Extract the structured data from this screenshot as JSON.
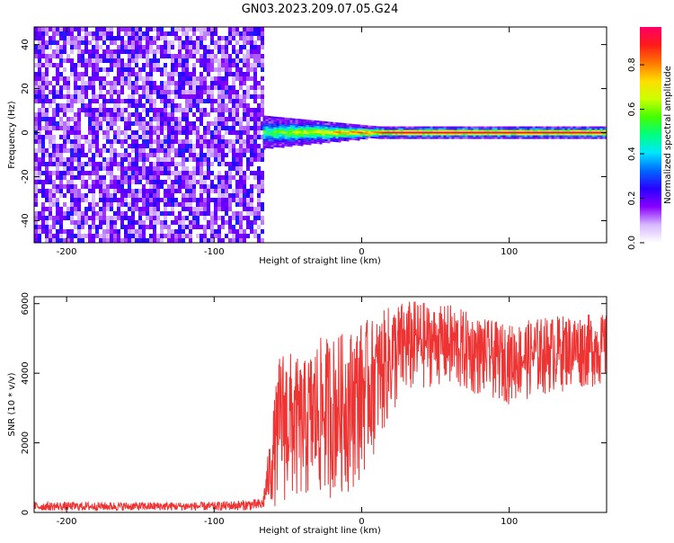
{
  "title": "GN03.2023.209.07.05.G24",
  "chart_data": [
    {
      "type": "heatmap",
      "xlabel": "Height of straight line (km)",
      "ylabel": "Frequency (Hz)",
      "xlim": [
        -222,
        166
      ],
      "ylim": [
        -50,
        48
      ],
      "x_ticks": [
        -200,
        -100,
        0,
        100
      ],
      "x_tick_labels": [
        "-200",
        "-100",
        "0",
        "100"
      ],
      "y_ticks": [
        -40,
        -20,
        0,
        20,
        40
      ],
      "y_tick_labels": [
        "-40",
        "-20",
        "0",
        "20",
        "40"
      ],
      "noise_region_x": [
        -222,
        -67
      ],
      "signal_start_x": -67,
      "signal_frequency": 0,
      "colorbar": {
        "label": "Normalized spectral amplitude",
        "range": [
          0,
          0.97
        ],
        "ticks": [
          0,
          0.2,
          0.4,
          0.6,
          0.8
        ],
        "tick_labels": [
          "0.0",
          "0.2",
          "0.4",
          "0.6",
          "0.8"
        ],
        "colors": [
          "#ffffff",
          "#d6b8ff",
          "#8800ff",
          "#2a00ff",
          "#0066ff",
          "#00e5ff",
          "#00ff80",
          "#44ff00",
          "#ccff00",
          "#ffdd00",
          "#ff7700",
          "#ff1a1a",
          "#ff0066"
        ]
      },
      "grid": false
    },
    {
      "type": "line",
      "xlabel": "Height of straight line (km)",
      "ylabel": "SNR (10 * v/v)",
      "xlim": [
        -222,
        166
      ],
      "ylim": [
        0,
        6200
      ],
      "x_ticks": [
        -200,
        -100,
        0,
        100
      ],
      "x_tick_labels": [
        "-200",
        "-100",
        "0",
        "100"
      ],
      "y_ticks": [
        0,
        2000,
        4000,
        6000
      ],
      "y_tick_labels": [
        "0",
        "2000",
        "4000",
        "6000"
      ],
      "line_color": "#ee3333",
      "envelope_x": [
        -222,
        -100,
        -67,
        -55,
        -50,
        -40,
        -30,
        -20,
        -10,
        0,
        10,
        20,
        30,
        40,
        50,
        60,
        80,
        100,
        120,
        140,
        166
      ],
      "envelope_low": [
        50,
        50,
        60,
        200,
        100,
        200,
        200,
        400,
        500,
        900,
        1800,
        2600,
        3200,
        3400,
        3700,
        3400,
        3300,
        3100,
        3300,
        3500,
        3600
      ],
      "envelope_high": [
        300,
        300,
        400,
        4800,
        4700,
        4300,
        5000,
        5100,
        5200,
        5500,
        5600,
        6000,
        6100,
        6100,
        5900,
        6000,
        5600,
        5400,
        5600,
        5700,
        5700
      ],
      "grid": false
    }
  ]
}
